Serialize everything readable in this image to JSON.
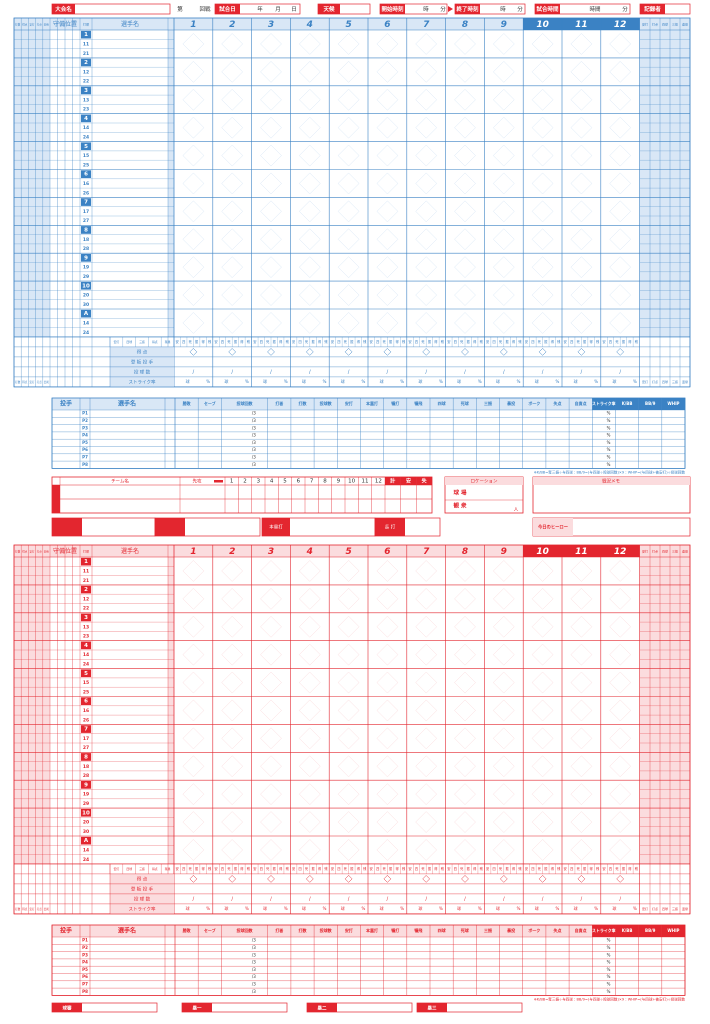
{
  "colors": {
    "top": "#3b82c4",
    "top_light": "#d9e7f6",
    "bottom": "#e3262f",
    "bottom_light": "#fbdcde",
    "accent": "#e3262f",
    "accent_light": "#fbdcde",
    "ink": "#333333"
  },
  "header": {
    "tournament": "大会名",
    "round_prefix": "第",
    "round_suffix": "回戦",
    "date": "試合日",
    "year": "年",
    "month": "月",
    "day": "日",
    "weather": "天候",
    "start": "開始時刻",
    "end": "終了時刻",
    "duration": "試合時間",
    "hour": "時",
    "minute": "分",
    "hours": "時間",
    "recorder": "記録者"
  },
  "scorecard": {
    "position": "守備位置",
    "order": "打順",
    "player": "選手名",
    "innings": [
      "1",
      "2",
      "3",
      "4",
      "5",
      "6",
      "7",
      "8",
      "9",
      "10",
      "11",
      "12"
    ],
    "left_stats": [
      "打数",
      "得点",
      "安打",
      "打点",
      "四死"
    ],
    "right_stats": [
      "安打",
      "打点",
      "四球",
      "三振",
      "盗塁"
    ],
    "orders": [
      [
        "1",
        "11",
        "21"
      ],
      [
        "2",
        "12",
        "22"
      ],
      [
        "3",
        "13",
        "23"
      ],
      [
        "4",
        "14",
        "24"
      ],
      [
        "5",
        "15",
        "25"
      ],
      [
        "6",
        "16",
        "26"
      ],
      [
        "7",
        "17",
        "27"
      ],
      [
        "8",
        "18",
        "28"
      ],
      [
        "9",
        "19",
        "29"
      ],
      [
        "10",
        "20",
        "30"
      ],
      [
        "A",
        "14",
        "24"
      ]
    ],
    "row_heads": [
      "安打",
      "四球",
      "三振",
      "得点",
      "残塁"
    ],
    "inning_stats": [
      "安",
      "四",
      "死",
      "振",
      "得",
      "残"
    ],
    "summary_rows": [
      "得 点",
      "登 板 投 手",
      "投 球 数",
      "ストライク率"
    ],
    "slash": "/",
    "balls": "球",
    "percent": "%"
  },
  "pitching": {
    "pitcher": "投手",
    "player": "選手名",
    "headers": [
      "勝敗",
      "セーブ",
      "投球回数",
      "打者",
      "打数",
      "投球数",
      "安打",
      "本塁打",
      "犠打",
      "犠飛",
      "四球",
      "死球",
      "三振",
      "暴投",
      "ボーク",
      "失点",
      "自責点",
      "ストライク率",
      "K/BB",
      "BB/9",
      "WHIP"
    ],
    "ids": [
      "P1",
      "P2",
      "P3",
      "P4",
      "P5",
      "P6",
      "P7",
      "P8"
    ],
    "thirds": "/3",
    "percent": "%",
    "note": "※K/BB=奪三振÷与四球：BB/9=(与四球÷投球回数)×9：WHIP=(与四球+被安打)÷投球回数"
  },
  "linescore": {
    "team": "チーム名",
    "first": "先攻",
    "innings": [
      "1",
      "2",
      "3",
      "4",
      "5",
      "6",
      "7",
      "8",
      "9",
      "10",
      "11",
      "12"
    ],
    "total": "計",
    "hits": "安",
    "errors": "失"
  },
  "venue": {
    "title": "ロケーション",
    "stadium": "球 場",
    "crowd": "観 衆",
    "people": "人"
  },
  "memo": "戦況メモ",
  "extras": {
    "homerun": "本塁打",
    "long": "長 打",
    "hero": "今日のヒーロー"
  },
  "umpires": [
    "球審",
    "塁一",
    "塁二",
    "塁三"
  ]
}
